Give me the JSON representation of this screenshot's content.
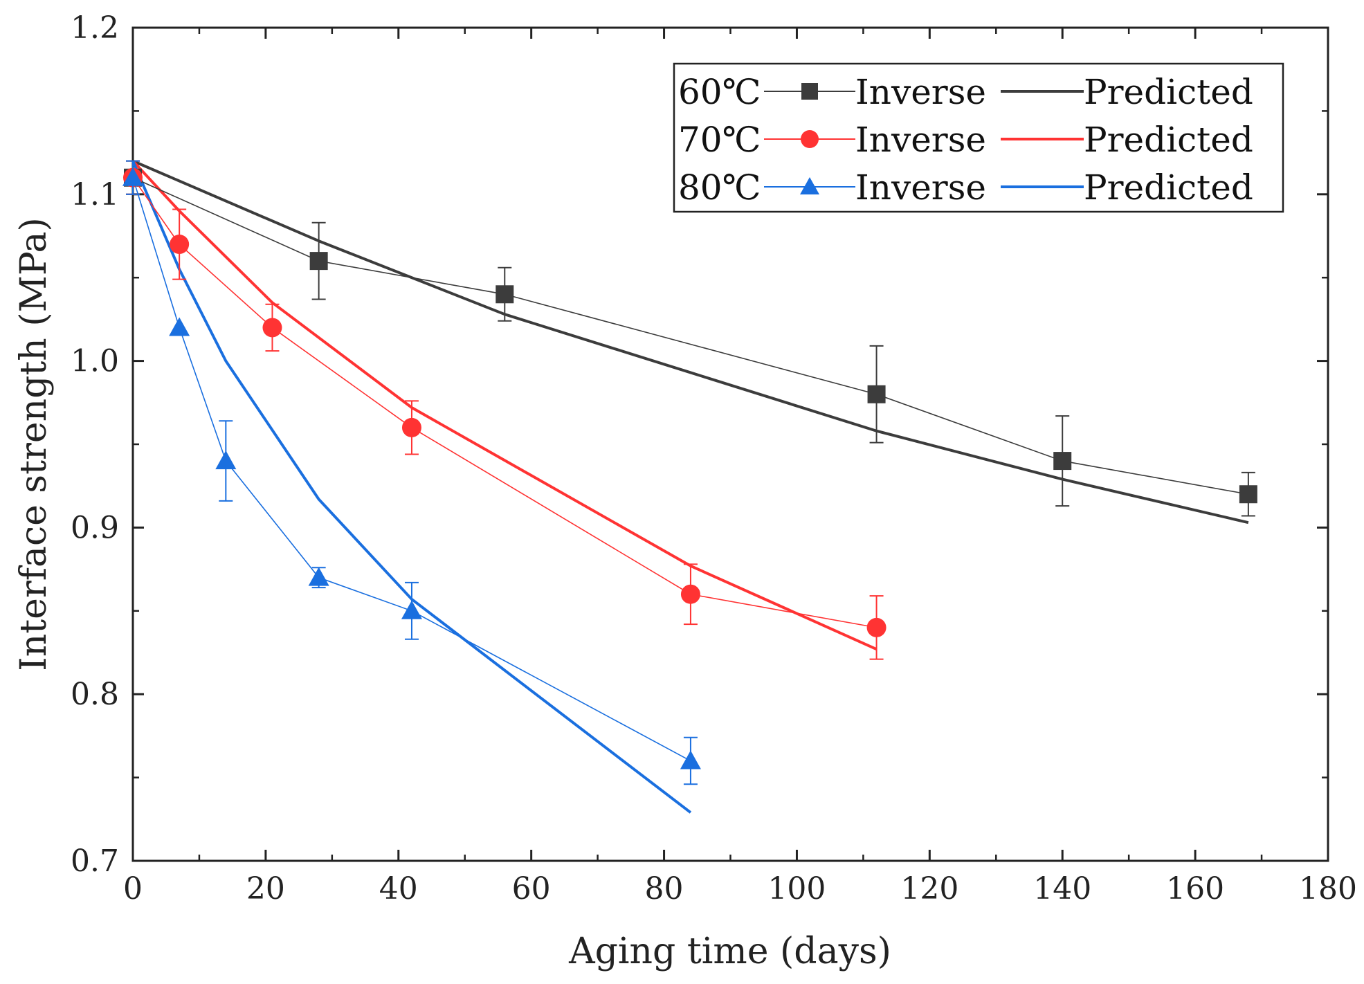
{
  "chart_data": {
    "type": "line",
    "title": "",
    "xlabel": "Aging time (days)",
    "ylabel": "Interface strength (MPa)",
    "xlim": [
      0,
      180
    ],
    "ylim": [
      0.7,
      1.2
    ],
    "xticks": [
      0,
      20,
      40,
      60,
      80,
      100,
      120,
      140,
      160,
      180
    ],
    "yticks": [
      0.7,
      0.8,
      0.9,
      1.0,
      1.1,
      1.2
    ],
    "xtick_labels": [
      "0",
      "20",
      "40",
      "60",
      "80",
      "100",
      "120",
      "140",
      "160",
      "180"
    ],
    "ytick_labels": [
      "0.7",
      "0.8",
      "0.9",
      "1.0",
      "1.1",
      "1.2"
    ],
    "grid": false,
    "legend_position": "top-right",
    "series": [
      {
        "temperature": "60℃",
        "color": "#3c3c3c",
        "marker": "square",
        "inverse_label": "Inverse",
        "predicted_label": "Predicted",
        "inverse": {
          "x": [
            0,
            28,
            56,
            112,
            140,
            168
          ],
          "y": [
            1.11,
            1.06,
            1.04,
            0.98,
            0.94,
            0.92
          ],
          "err": [
            0.01,
            0.023,
            0.016,
            0.029,
            0.027,
            0.013
          ]
        },
        "predicted": {
          "x": [
            0,
            28,
            56,
            84,
            112,
            140,
            168
          ],
          "y": [
            1.12,
            1.072,
            1.028,
            0.993,
            0.958,
            0.929,
            0.903
          ]
        }
      },
      {
        "temperature": "70℃",
        "color": "#ff3333",
        "marker": "circle",
        "inverse_label": "Inverse",
        "predicted_label": "Predicted",
        "inverse": {
          "x": [
            0,
            7,
            21,
            42,
            84,
            112
          ],
          "y": [
            1.11,
            1.07,
            1.02,
            0.96,
            0.86,
            0.84
          ],
          "err": [
            0.01,
            0.021,
            0.014,
            0.016,
            0.018,
            0.019
          ]
        },
        "predicted": {
          "x": [
            0,
            7,
            21,
            42,
            84,
            112
          ],
          "y": [
            1.12,
            1.09,
            1.035,
            0.972,
            0.877,
            0.827
          ]
        }
      },
      {
        "temperature": "80℃",
        "color": "#1a6fdf",
        "marker": "triangle",
        "inverse_label": "Inverse",
        "predicted_label": "Predicted",
        "inverse": {
          "x": [
            0,
            7,
            14,
            28,
            42,
            84
          ],
          "y": [
            1.11,
            1.02,
            0.94,
            0.87,
            0.85,
            0.76
          ],
          "err": [
            0.01,
            0.0,
            0.024,
            0.006,
            0.017,
            0.014
          ]
        },
        "predicted": {
          "x": [
            0,
            7,
            14,
            28,
            42,
            84
          ],
          "y": [
            1.12,
            1.055,
            1.0,
            0.917,
            0.857,
            0.729
          ]
        }
      }
    ]
  }
}
